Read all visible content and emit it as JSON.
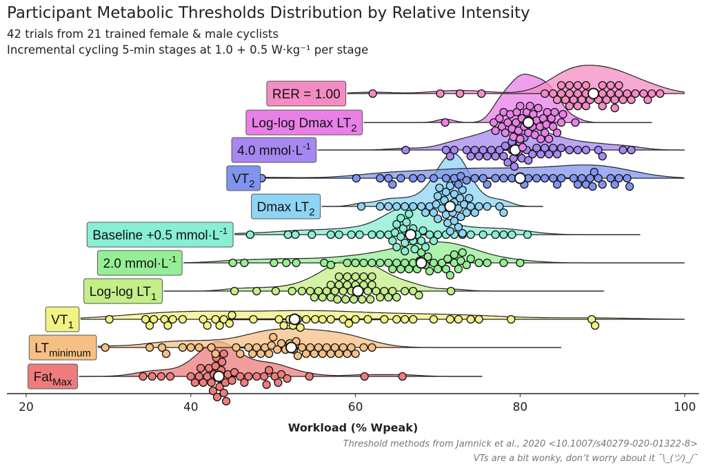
{
  "title": "Participant Metabolic Thresholds Distribution by Relative Intensity",
  "subtitle_lines": [
    "42 trials from 21 trained female & male cyclists",
    "Incremental cycling 5-min stages at 1.0 + 0.5 W·kg⁻¹ per stage"
  ],
  "caption_lines": [
    "Threshold methods from Jamnick et al., 2020 <10.1007/s40279-020-01322-8>",
    "VTs are a bit wonky, don’t worry about it ¯\\_(ツ)_/¯"
  ],
  "chart_data": {
    "type": "raincloud (half-violin + beeswarm)",
    "xlabel": "Workload (% Wpeak)",
    "xlim": [
      18,
      102
    ],
    "xticks": [
      20,
      40,
      60,
      80,
      100
    ],
    "grid": false,
    "legend": "none",
    "series": [
      {
        "label": "RER = 1.00",
        "sub": "",
        "sup": "",
        "color": "#f48cc4",
        "median": 88.9,
        "extent": [
          59,
          100
        ],
        "values": [
          62.1,
          70.3,
          72.7,
          75.3,
          83,
          84,
          84.5,
          85,
          85.5,
          86,
          86,
          86.5,
          87,
          87,
          87.5,
          88,
          88,
          88.5,
          89,
          89.5,
          90,
          90,
          90.5,
          91,
          91,
          91.5,
          91.5,
          92,
          92,
          92.5,
          93,
          93.5,
          94,
          95,
          95.5,
          96,
          97,
          85,
          86,
          87,
          88,
          90
        ]
      },
      {
        "label": "Log-log Dmax LT",
        "sub": "2",
        "sup": "",
        "color": "#e880e8",
        "median": 81.0,
        "extent": [
          61,
          96
        ],
        "values": [
          70.9,
          76.8,
          77,
          77.5,
          77.8,
          78,
          78.2,
          78.5,
          78.8,
          79,
          79.2,
          79.5,
          79.8,
          80,
          80,
          80.2,
          80.5,
          80.8,
          81,
          81,
          81.2,
          81.5,
          81.8,
          82,
          82.2,
          82.5,
          82.8,
          83,
          83.2,
          83.5,
          83.8,
          84,
          84.2,
          84.5,
          85,
          85.2,
          86.7,
          79.6,
          80.3,
          81.6,
          82.4,
          83.3
        ]
      },
      {
        "label": "4.0 mmol·L",
        "sub": "",
        "sup": "-1",
        "color": "#a688f0",
        "median": 79.4,
        "extent": [
          55.4,
          100
        ],
        "values": [
          66.1,
          71,
          71.5,
          72,
          73.5,
          74,
          74.5,
          75,
          75.5,
          76,
          76.5,
          77,
          77.5,
          78,
          78.5,
          79,
          79,
          79.2,
          79.5,
          79.8,
          80,
          80.2,
          80.5,
          81,
          81.5,
          82,
          82.5,
          83,
          83.5,
          84,
          84.5,
          85,
          86,
          87,
          88,
          89.5,
          90,
          92.5,
          93.5,
          78.2,
          79.3,
          80.8
        ]
      },
      {
        "label": "VT",
        "sub": "2",
        "sup": "",
        "color": "#8094ee",
        "median": 80.0,
        "extent": [
          48.6,
          100
        ],
        "values": [
          48.6,
          60.1,
          63,
          64,
          65.5,
          67,
          68,
          69.5,
          71,
          72,
          72.5,
          73.5,
          74.5,
          75.5,
          77,
          78,
          79,
          80,
          81,
          82,
          83,
          84,
          85,
          86.5,
          87.5,
          88,
          88.5,
          89,
          89.5,
          90,
          91,
          92,
          93,
          93.3,
          64.5,
          72.8,
          80.5,
          87,
          88.8,
          91.5,
          76,
          84.5
        ]
      },
      {
        "label": "Dmax LT",
        "sub": "2",
        "sup": "",
        "color": "#8ed4f4",
        "median": 71.5,
        "extent": [
          55.9,
          82.8
        ],
        "values": [
          60.7,
          63,
          64,
          65,
          66,
          67,
          68,
          68.5,
          69,
          69.5,
          70,
          70,
          70.5,
          71,
          71,
          71.5,
          71.5,
          72,
          72,
          72,
          72.5,
          72.5,
          73,
          73,
          73.5,
          74,
          74.5,
          75,
          76,
          77.5,
          78,
          69.8,
          70.8,
          71.2,
          71.8,
          72.2,
          72.8,
          73.2,
          70.2,
          71.3,
          72.7,
          73.8
        ]
      },
      {
        "label": "Baseline +0.5 mmol·L",
        "sub": "",
        "sup": "-1",
        "color": "#88eed4",
        "median": 66.7,
        "extent": [
          45.3,
          94.6
        ],
        "values": [
          47.2,
          51.8,
          52.7,
          54.7,
          57,
          58,
          59.5,
          60.5,
          62,
          63,
          64,
          64.5,
          65,
          65,
          65.5,
          65.5,
          66,
          66,
          66.5,
          66.5,
          67,
          67,
          67.5,
          68,
          68.5,
          69,
          69.5,
          70,
          71,
          72,
          73,
          74,
          75.5,
          77,
          78,
          79,
          80.9,
          65.8,
          66.2,
          67.2,
          64.8,
          68.2
        ]
      },
      {
        "label": "2.0 mmol·L",
        "sub": "",
        "sup": "-1",
        "color": "#96ee96",
        "median": 68.0,
        "extent": [
          39.1,
          100
        ],
        "values": [
          45.1,
          46.5,
          50.1,
          51.6,
          52.8,
          56.2,
          57,
          59,
          60,
          61,
          62,
          63,
          64,
          64.5,
          65,
          65.5,
          66,
          66.5,
          67,
          67.5,
          68,
          68.5,
          69,
          69.5,
          70,
          70.5,
          71,
          71.5,
          72,
          72,
          72.5,
          73,
          73.5,
          74,
          75,
          76,
          78,
          80,
          67.8,
          68.8,
          71.2,
          72.8
        ]
      },
      {
        "label": "Log-log LT",
        "sub": "1",
        "sup": "",
        "color": "#c4ee88",
        "median": 60.3,
        "extent": [
          36.7,
          90.2
        ],
        "values": [
          45.3,
          48,
          50.3,
          52.3,
          53.5,
          54.5,
          55,
          55.5,
          56,
          56.5,
          57,
          57,
          57.5,
          58,
          58,
          58.5,
          59,
          59,
          59.5,
          60,
          60,
          60.5,
          61,
          61,
          61.5,
          62,
          62,
          62.5,
          63,
          63.5,
          64,
          64.5,
          65,
          66,
          67,
          67.7,
          71.6,
          58.8,
          59.8,
          60.8,
          61.8,
          57.8
        ]
      },
      {
        "label": "VT",
        "sub": "1",
        "sup": "",
        "color": "#f2f284",
        "median": 52.6,
        "extent": [
          26.6,
          100
        ],
        "values": [
          30.1,
          34.5,
          35,
          36.8,
          37.2,
          39,
          41.5,
          42,
          43,
          44,
          44.7,
          47.6,
          50.7,
          51.3,
          52,
          53,
          55.1,
          56,
          57,
          58.5,
          60,
          61.5,
          63.5,
          65,
          67,
          69.5,
          71.5,
          74,
          75,
          78.9,
          88.7,
          89.1,
          35.5,
          37.8,
          43.5,
          45,
          52.4,
          53.3,
          54,
          59.2,
          66,
          72.5
        ]
      },
      {
        "label": "LT",
        "sub": "minimum",
        "sup": "",
        "color": "#f6c084",
        "median": 52.2,
        "extent": [
          28.7,
          85
        ],
        "values": [
          29.6,
          35,
          36.5,
          37,
          39,
          40,
          41,
          42.5,
          43,
          45.5,
          46,
          47,
          47.5,
          48,
          48.5,
          49,
          49.5,
          50,
          50.5,
          51,
          51.5,
          52,
          52.5,
          53,
          53.5,
          54,
          54.5,
          55,
          55.5,
          56,
          56.5,
          57,
          57.5,
          58,
          58.5,
          59,
          59.5,
          60,
          61,
          62,
          49.8,
          52.8
        ]
      },
      {
        "label": "Fat",
        "sub": "Max",
        "sup": "",
        "color": "#ee7c7c",
        "median": 43.4,
        "extent": [
          26.4,
          75.4
        ],
        "values": [
          34.2,
          35.3,
          36.4,
          37.5,
          40,
          41,
          41.5,
          42,
          42.5,
          42.8,
          43,
          43.2,
          43.5,
          43.5,
          43.8,
          44,
          44,
          44.2,
          44.5,
          45,
          45.3,
          46,
          47,
          48,
          48.9,
          49.5,
          50.6,
          51,
          51.7,
          54.4,
          61.1,
          65.7,
          42.2,
          43.1,
          43.7,
          44.3,
          41.2,
          40.5,
          46.5,
          49.2,
          50.2,
          42.7
        ]
      }
    ]
  }
}
